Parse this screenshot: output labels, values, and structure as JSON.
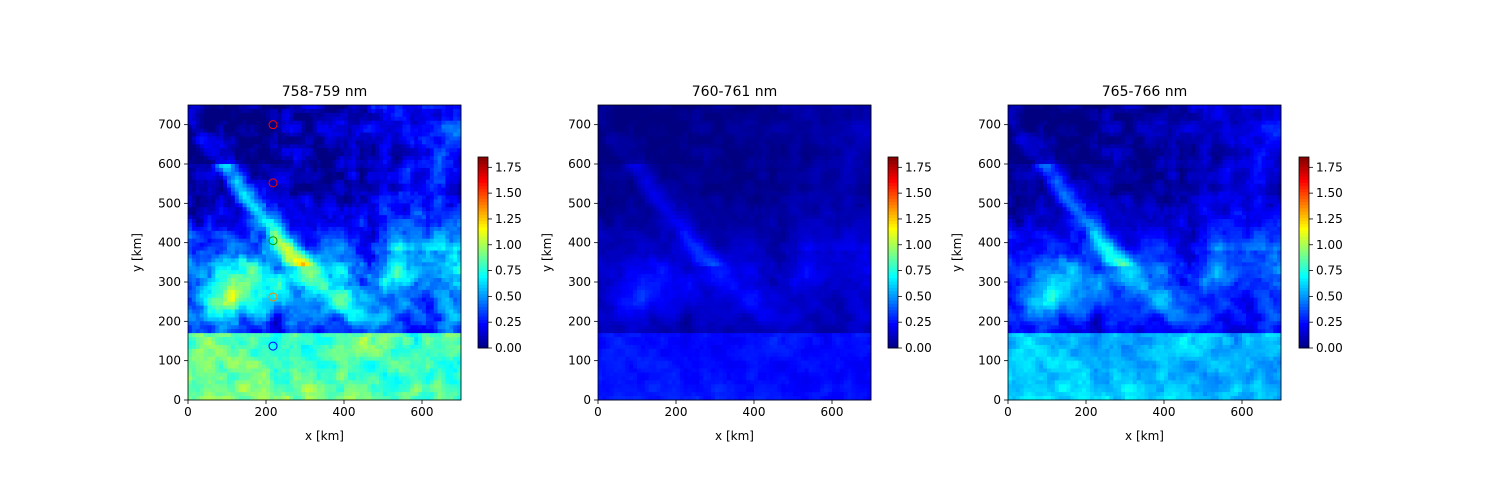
{
  "chart_data": [
    {
      "type": "heatmap",
      "title": "758-759 nm",
      "xlabel": "x [km]",
      "ylabel": "y [km]",
      "xlim": [
        0,
        700
      ],
      "ylim": [
        0,
        750
      ],
      "xticks": [
        "0",
        "200",
        "400",
        "600"
      ],
      "yticks": [
        "0",
        "100",
        "200",
        "300",
        "400",
        "500",
        "600",
        "700"
      ],
      "colormap": "jet",
      "clim": [
        0,
        1.85
      ],
      "colorbar_ticks": [
        "0.00",
        "0.25",
        "0.50",
        "0.75",
        "1.00",
        "1.25",
        "1.50",
        "1.75"
      ],
      "field_scale": 1.0,
      "markers": [
        {
          "x": 218,
          "y": 700,
          "color": "#ff0000"
        },
        {
          "x": 218,
          "y": 552,
          "color": "#ff0000"
        },
        {
          "x": 218,
          "y": 405,
          "color": "#00a000"
        },
        {
          "x": 218,
          "y": 262,
          "color": "#ff8000"
        },
        {
          "x": 218,
          "y": 137,
          "color": "#0000ff"
        }
      ]
    },
    {
      "type": "heatmap",
      "title": "760-761 nm",
      "xlabel": "x [km]",
      "ylabel": "y [km]",
      "xlim": [
        0,
        700
      ],
      "ylim": [
        0,
        750
      ],
      "xticks": [
        "0",
        "200",
        "400",
        "600"
      ],
      "yticks": [
        "0",
        "100",
        "200",
        "300",
        "400",
        "500",
        "600",
        "700"
      ],
      "colormap": "jet",
      "clim": [
        0,
        1.85
      ],
      "colorbar_ticks": [
        "0.00",
        "0.25",
        "0.50",
        "0.75",
        "1.00",
        "1.25",
        "1.50",
        "1.75"
      ],
      "field_scale": 0.3,
      "markers": []
    },
    {
      "type": "heatmap",
      "title": "765-766 nm",
      "xlabel": "x [km]",
      "ylabel": "y [km]",
      "xlim": [
        0,
        700
      ],
      "ylim": [
        0,
        750
      ],
      "xticks": [
        "0",
        "200",
        "400",
        "600"
      ],
      "yticks": [
        "0",
        "100",
        "200",
        "300",
        "400",
        "500",
        "600",
        "700"
      ],
      "colormap": "jet",
      "clim": [
        0,
        1.85
      ],
      "colorbar_ticks": [
        "0.00",
        "0.25",
        "0.50",
        "0.75",
        "1.00",
        "1.25",
        "1.50",
        "1.75"
      ],
      "field_scale": 0.68,
      "markers": []
    }
  ]
}
